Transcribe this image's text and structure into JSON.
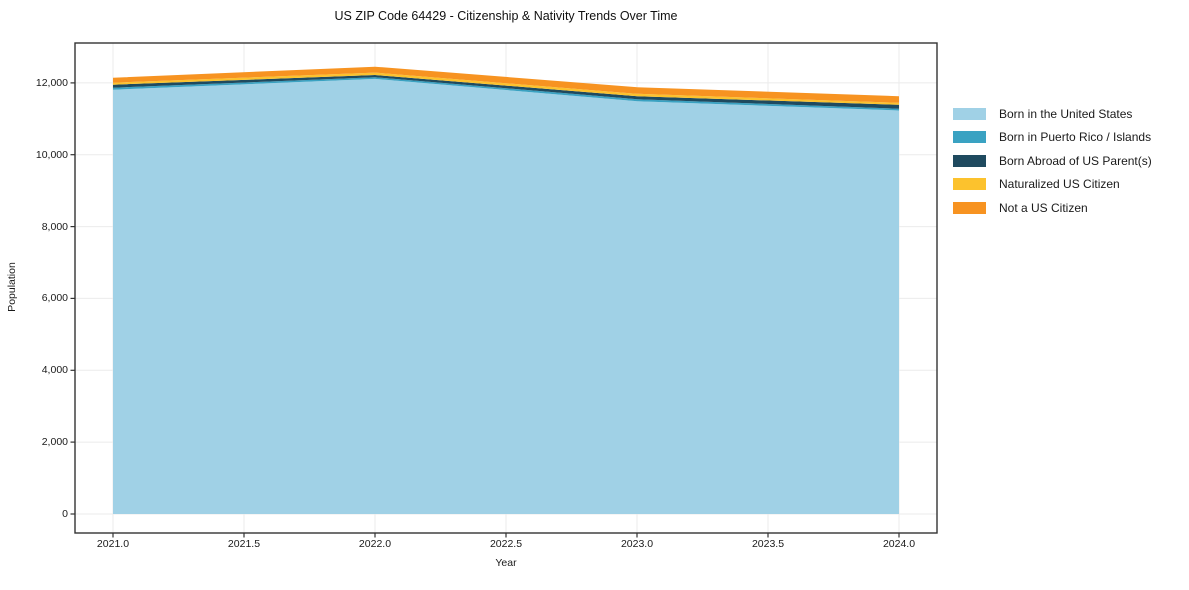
{
  "chart_data": {
    "type": "area",
    "stacked": true,
    "title": "US ZIP Code 64429 - Citizenship & Nativity Trends Over Time",
    "xlabel": "Year",
    "ylabel": "Population",
    "x": [
      2021.0,
      2022.0,
      2023.0,
      2024.0
    ],
    "series": [
      {
        "name": "Born in the United States",
        "color": "#a0d1e6",
        "values": [
          11810,
          12110,
          11490,
          11230
        ]
      },
      {
        "name": "Born in Puerto Rico / Islands",
        "color": "#3aa2c2",
        "values": [
          55,
          45,
          55,
          50
        ]
      },
      {
        "name": "Born Abroad of US Parent(s)",
        "color": "#1f4a5f",
        "values": [
          85,
          65,
          85,
          110
        ]
      },
      {
        "name": "Naturalized US Citizen",
        "color": "#fcc22d",
        "values": [
          55,
          65,
          65,
          55
        ]
      },
      {
        "name": "Not a US Citizen",
        "color": "#f79321",
        "values": [
          140,
          165,
          185,
          185
        ]
      }
    ],
    "stack_totals": [
      12145,
      12450,
      11880,
      11630
    ],
    "x_ticks": [
      2021.0,
      2021.5,
      2022.0,
      2022.5,
      2023.0,
      2023.5,
      2024.0
    ],
    "x_tick_labels": [
      "2021.0",
      "2021.5",
      "2022.0",
      "2022.5",
      "2023.0",
      "2023.5",
      "2024.0"
    ],
    "y_ticks": [
      0,
      2000,
      4000,
      6000,
      8000,
      10000,
      12000
    ],
    "y_tick_labels": [
      "0",
      "2,000",
      "4,000",
      "6,000",
      "8,000",
      "10,000",
      "12,000"
    ],
    "xlim": [
      2020.855,
      2024.145
    ],
    "ylim": [
      -530,
      13110
    ],
    "grid": true,
    "legend_position": "center-right-outside",
    "grid_color": "#ebebeb",
    "spine_color": "#333333",
    "text_color": "#1a1a1a"
  }
}
